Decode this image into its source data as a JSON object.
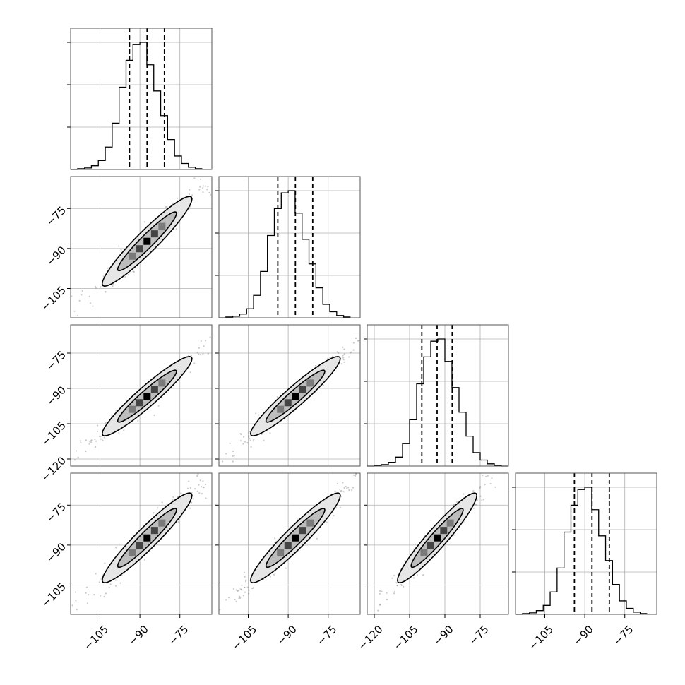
{
  "chart_data": {
    "type": "corner",
    "colors": {
      "hist": "#000000",
      "quantile": "#000000",
      "grid": "#b0b0b0",
      "points": "#666666",
      "contour_fill_outer": "#e6e6e6",
      "contour_fill_inner": "#bdbdbd",
      "density_high": "#000000",
      "density_mid": "#444444",
      "density_low": "#7a7a7a"
    },
    "grid": true,
    "parameters": [
      {
        "index": 0,
        "range": [
          -116,
          -63
        ],
        "x_ticks": [
          -105,
          -90,
          -75
        ],
        "x_tick_labels": [
          "−105",
          "−90",
          "−75"
        ],
        "quantiles": [
          -93.9,
          -87.3,
          -80.8
        ],
        "histogram": {
          "bin_start": -116,
          "bin_width": 2.6,
          "counts": [
            0,
            1,
            2,
            5,
            12,
            30,
            62,
            110,
            146,
            167,
            170,
            140,
            105,
            72,
            40,
            18,
            8,
            3,
            1
          ]
        }
      },
      {
        "index": 1,
        "range": [
          -116,
          -63
        ],
        "y_ticks": [
          -105,
          -90,
          -75
        ],
        "y_tick_labels": [
          "−105",
          "−90",
          "−75"
        ],
        "x_ticks": [
          -105,
          -90,
          -75
        ],
        "x_tick_labels": [
          "−105",
          "−90",
          "−75"
        ],
        "quantiles": [
          -93.9,
          -87.3,
          -80.8
        ],
        "histogram": {
          "bin_start": -116,
          "bin_width": 2.6,
          "counts": [
            0,
            1,
            2,
            5,
            12,
            30,
            62,
            110,
            146,
            167,
            170,
            140,
            105,
            72,
            40,
            18,
            8,
            3,
            1
          ]
        }
      },
      {
        "index": 2,
        "range": [
          -123,
          -63
        ],
        "y_ticks": [
          -120,
          -105,
          -90,
          -75
        ],
        "y_tick_labels": [
          "−120",
          "−105",
          "−90",
          "−75"
        ],
        "x_ticks": [
          -120,
          -105,
          -90,
          -75
        ],
        "x_tick_labels": [
          "−120",
          "−105",
          "−90",
          "−75"
        ],
        "quantiles": [
          -99.8,
          -93.3,
          -86.9
        ],
        "histogram": {
          "bin_start": -123,
          "bin_width": 3.0,
          "counts": [
            0,
            1,
            2,
            5,
            12,
            30,
            62,
            110,
            146,
            167,
            170,
            140,
            105,
            72,
            40,
            18,
            8,
            3,
            1,
            0
          ]
        }
      },
      {
        "index": 3,
        "range": [
          -116,
          -63
        ],
        "y_ticks": [
          -105,
          -90,
          -75
        ],
        "y_tick_labels": [
          "−105",
          "−90",
          "−75"
        ],
        "x_ticks": [
          -105,
          -90,
          -75
        ],
        "x_tick_labels": [
          "−105",
          "−90",
          "−75"
        ],
        "quantiles": [
          -93.9,
          -87.3,
          -80.8
        ],
        "histogram": {
          "bin_start": -116,
          "bin_width": 2.6,
          "counts": [
            0,
            1,
            2,
            5,
            12,
            30,
            62,
            110,
            146,
            167,
            170,
            140,
            105,
            72,
            40,
            18,
            8,
            3,
            1
          ]
        }
      }
    ],
    "joint": {
      "center_offset": 0,
      "spread": 9.5,
      "width": 1.9,
      "point_count": 260
    }
  }
}
